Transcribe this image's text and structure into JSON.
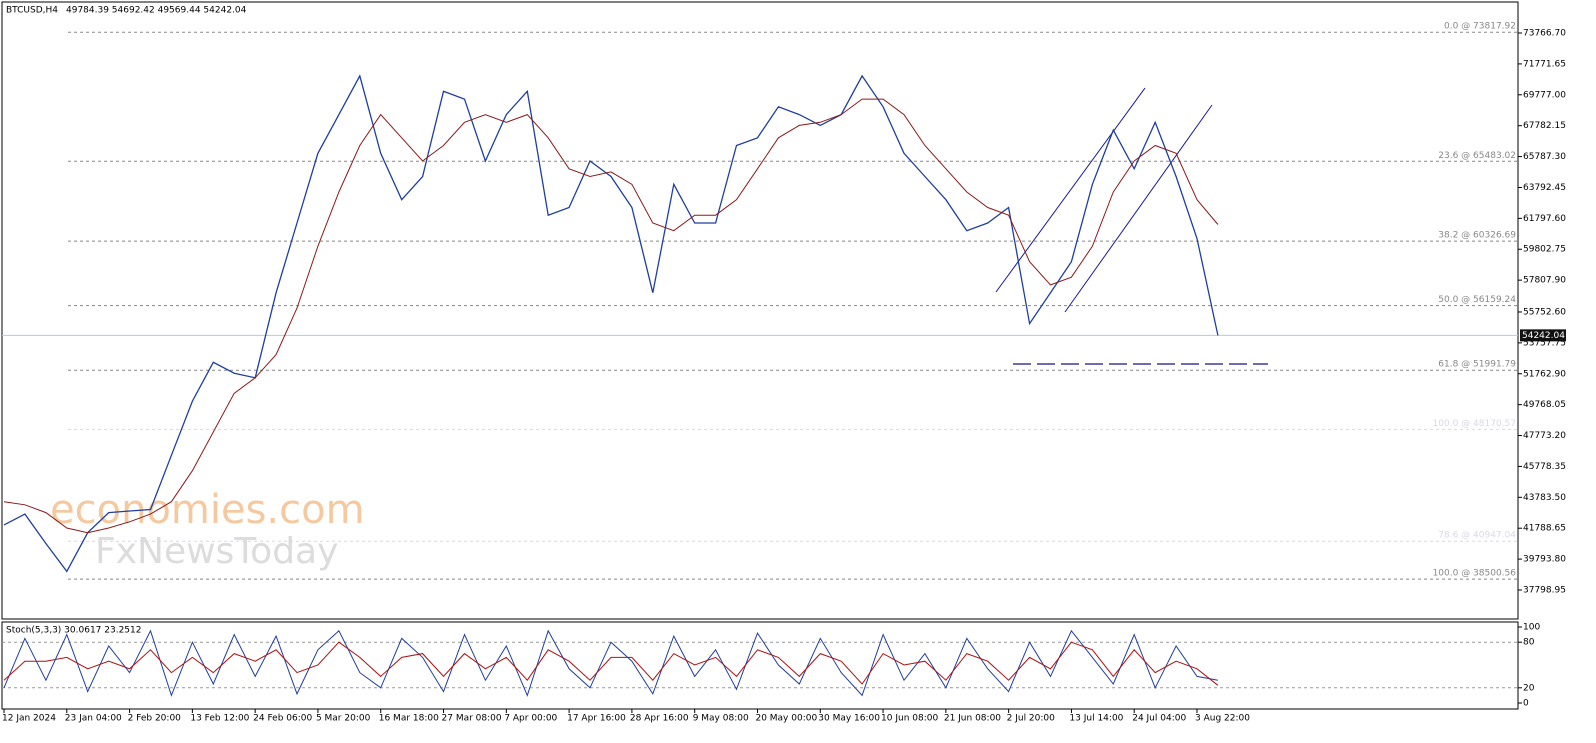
{
  "chart_data": [
    {
      "type": "line",
      "title": "BTCUSD,H4",
      "subtitle": "49784.39 54692.42 49569.44 54242.04",
      "categories": [
        "12 Jan 2024",
        null,
        null,
        "23 Jan 04:00",
        null,
        null,
        "2 Feb 20:00",
        null,
        null,
        "13 Feb 12:00",
        null,
        null,
        "24 Feb 06:00",
        null,
        null,
        "5 Mar 20:00",
        null,
        null,
        "16 Mar 18:00",
        null,
        null,
        "27 Mar 08:00",
        null,
        null,
        "7 Apr 00:00",
        null,
        null,
        "17 Apr 16:00",
        null,
        null,
        "28 Apr 16:00",
        null,
        null,
        "9 May 08:00",
        null,
        null,
        "20 May 00:00",
        null,
        null,
        "30 May 16:00",
        null,
        null,
        "10 Jun 08:00",
        null,
        null,
        "21 Jun 08:00",
        null,
        null,
        "2 Jul 20:00",
        null,
        null,
        "13 Jul 14:00",
        null,
        null,
        "24 Jul 04:00",
        null,
        null,
        "3 Aug 22:00",
        null
      ],
      "series": [
        {
          "color": "#1f3f9f",
          "values": [
            42000,
            42700,
            40800,
            39000,
            41500,
            42800,
            42900,
            43000,
            46500,
            50000,
            52500,
            51800,
            51500,
            57000,
            61500,
            66000,
            68500,
            71000,
            66000,
            63000,
            64500,
            70000,
            69500,
            65500,
            68500,
            70000,
            62000,
            62500,
            65500,
            64500,
            62500,
            57000,
            64000,
            61500,
            61500,
            66500,
            67000,
            69000,
            68500,
            67800,
            68500,
            71000,
            69000,
            66000,
            64500,
            63000,
            61000,
            61500,
            62500,
            55000,
            57000,
            59000,
            64000,
            67500,
            65000,
            68000,
            64500,
            60500,
            54242.04
          ]
        },
        {
          "color": "#8b1a1a",
          "values": [
            43500,
            43300,
            42800,
            41800,
            41500,
            41800,
            42200,
            42700,
            43500,
            45500,
            48000,
            50500,
            51500,
            53000,
            56000,
            60000,
            63500,
            66500,
            68500,
            67000,
            65500,
            66500,
            68000,
            68500,
            68000,
            68500,
            67000,
            65000,
            64500,
            64800,
            64000,
            61500,
            61000,
            62000,
            62000,
            63000,
            65000,
            67000,
            67800,
            68000,
            68500,
            69500,
            69500,
            68500,
            66500,
            65000,
            63500,
            62500,
            62000,
            59000,
            57500,
            58000,
            60000,
            63500,
            65500,
            66500,
            66000,
            63000,
            61400
          ]
        }
      ],
      "ylim": [
        35926,
        75769
      ],
      "yticks": [
        {
          "value": 73766.7,
          "label": "73766.70"
        },
        71771.65,
        {
          "value": 69777,
          "label": "69777.00"
        },
        67782.15,
        {
          "value": 65787.3,
          "label": "65787.30"
        },
        63792.45,
        {
          "value": 61797.6,
          "label": "61797.60"
        },
        59802.75,
        {
          "value": 57807.9,
          "label": "57807.90"
        },
        {
          "value": 55752.6,
          "label": "55752.60"
        },
        53757.75,
        {
          "value": 51762.9,
          "label": "51762.90"
        },
        49768.05,
        {
          "value": 47773.2,
          "label": "47773.20"
        },
        45778.35,
        {
          "value": 43783.5,
          "label": "43783.50"
        },
        41788.65,
        {
          "value": 39793.8,
          "label": "39793.80"
        },
        37798.95
      ],
      "levels": [
        {
          "value": 73817.92,
          "label": "0.0 @ 73817.92",
          "color": "#888888"
        },
        {
          "value": 65483.02,
          "label": "23.6 @ 65483.02",
          "color": "#888888"
        },
        {
          "value": 60326.69,
          "label": "38.2 @ 60326.69",
          "color": "#888888"
        },
        {
          "value": 56159.24,
          "label": "50.0 @ 56159.24",
          "color": "#888888"
        },
        {
          "value": 51991.79,
          "label": "61.8 @ 51991.79",
          "color": "#888888"
        },
        {
          "value": 48170.57,
          "label": "100.0 @ 48170.57",
          "color": "#d8d8e8"
        },
        {
          "value": 40947.04,
          "label": "78.6 @ 40947.04",
          "color": "#d8d8e8"
        },
        {
          "value": 38500.56,
          "label": "100.0 @ 38500.56",
          "color": "#888888"
        }
      ],
      "last_price": 54242.04,
      "grid": false
    },
    {
      "type": "line",
      "title": "Stoch(5,3,3) 30.0617 23.2512",
      "series": [
        {
          "color": "#1f3f9f",
          "values": [
            20,
            85,
            30,
            90,
            15,
            75,
            40,
            95,
            10,
            80,
            25,
            90,
            35,
            88,
            12,
            70,
            95,
            40,
            20,
            85,
            60,
            15,
            90,
            30,
            75,
            10,
            95,
            45,
            20,
            80,
            55,
            12,
            88,
            35,
            70,
            18,
            92,
            50,
            25,
            85,
            40,
            10,
            90,
            30,
            65,
            20,
            85,
            45,
            15,
            80,
            35,
            95,
            60,
            25,
            90,
            20,
            75,
            35,
            30.0617
          ]
        },
        {
          "color": "#b01010",
          "values": [
            30,
            55,
            55,
            60,
            45,
            55,
            45,
            70,
            40,
            60,
            40,
            65,
            55,
            70,
            40,
            50,
            80,
            60,
            35,
            60,
            65,
            35,
            65,
            45,
            60,
            30,
            70,
            55,
            30,
            60,
            60,
            30,
            65,
            50,
            60,
            35,
            70,
            60,
            35,
            65,
            55,
            25,
            65,
            50,
            55,
            30,
            65,
            55,
            30,
            60,
            45,
            80,
            70,
            35,
            70,
            40,
            55,
            45,
            23.2512
          ]
        }
      ],
      "ylim": [
        0,
        100
      ],
      "yticks": [
        0,
        20,
        80,
        100
      ]
    }
  ],
  "watermark": {
    "brand": "economies.com",
    "sub": "FxNewsToday"
  }
}
